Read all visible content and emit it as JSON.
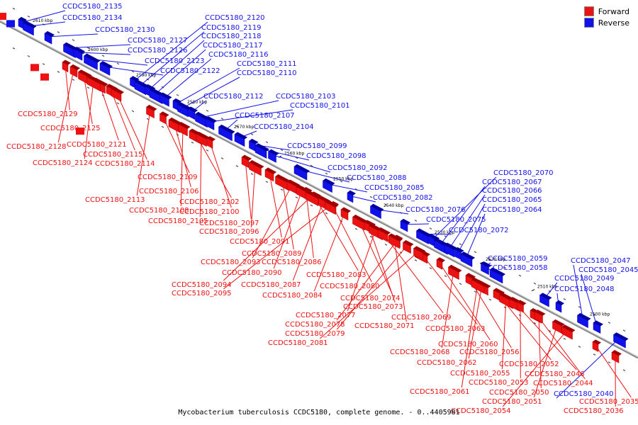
{
  "caption": "Mycobacterium tuberculosis CCDC5180, complete genome. - 0..4405981",
  "legend": [
    {
      "label": "Forward",
      "color": "#ee1111"
    },
    {
      "label": "Reverse",
      "color": "#1111ee"
    }
  ],
  "kbp_ticks": [
    "2610 kbp",
    "2600 kbp",
    "2590 kbp",
    "2580 kbp",
    "2570 kbp",
    "2560 kbp",
    "2550 kbp",
    "2540 kbp",
    "2530 kbp",
    "2520 kbp",
    "2510 kbp",
    "2500 kbp"
  ],
  "reverse_genes": [
    "CCDC5180_2135",
    "CCDC5180_2134",
    "CCDC5180_2130",
    "CCDC5180_2127",
    "CCDC5180_2126",
    "CCDC5180_2123",
    "CCDC5180_2122",
    "CCDC5180_2120",
    "CCDC5180_2119",
    "CCDC5180_2118",
    "CCDC5180_2117",
    "CCDC5180_2116",
    "CCDC5180_2111",
    "CCDC5180_2110",
    "CCDC5180_2112",
    "CCDC5180_2103",
    "CCDC5180_2101",
    "CCDC5180_2107",
    "CCDC5180_2104",
    "CCDC5180_2099",
    "CCDC5180_2098",
    "CCDC5180_2092",
    "CCDC5180_2088",
    "CCDC5180_2085",
    "CCDC5180_2082",
    "CCDC5180_2076",
    "CCDC5180_2075",
    "CCDC5180_2072",
    "CCDC5180_2070",
    "CCDC5180_2067",
    "CCDC5180_2066",
    "CCDC5180_2065",
    "CCDC5180_2064",
    "CCDC5180_2059",
    "CCDC5180_2058",
    "CCDC5180_2049",
    "CCDC5180_2048",
    "CCDC5180_2047",
    "CCDC5180_2045",
    "CCDC5180_2040"
  ],
  "forward_genes": [
    "CCDC5180_2129",
    "CCDC5180_2125",
    "CCDC5180_2128",
    "CCDC5180_2121",
    "CCDC5180_2115",
    "CCDC5180_2124",
    "CCDC5180_2114",
    "CCDC5180_2109",
    "CCDC5180_2106",
    "CCDC5180_2113",
    "CCDC5180_2102",
    "CCDC5180_2108",
    "CCDC5180_2100",
    "CCDC5180_2105",
    "CCDC5180_2097",
    "CCDC5180_2096",
    "CCDC5180_2091",
    "CCDC5180_2089",
    "CCDC5180_2093",
    "CCDC5180_2086",
    "CCDC5180_2090",
    "CCDC5180_2083",
    "CCDC5180_2094",
    "CCDC5180_2087",
    "CCDC5180_2080",
    "CCDC5180_2095",
    "CCDC5180_2084",
    "CCDC5180_2074",
    "CCDC5180_2073",
    "CCDC5180_2077",
    "CCDC5180_2069",
    "CCDC5180_2078",
    "CCDC5180_2071",
    "CCDC5180_2079",
    "CCDC5180_2063",
    "CCDC5180_2081",
    "CCDC5180_2060",
    "CCDC5180_2068",
    "CCDC5180_2056",
    "CCDC5180_2062",
    "CCDC5180_2052",
    "CCDC5180_2055",
    "CCDC5180_2046",
    "CCDC5180_2053",
    "CCDC5180_2044",
    "CCDC5180_2050",
    "CCDC5180_2061",
    "CCDC5180_2051",
    "CCDC5180_2035",
    "CCDC5180_2054",
    "CCDC5180_2036"
  ]
}
